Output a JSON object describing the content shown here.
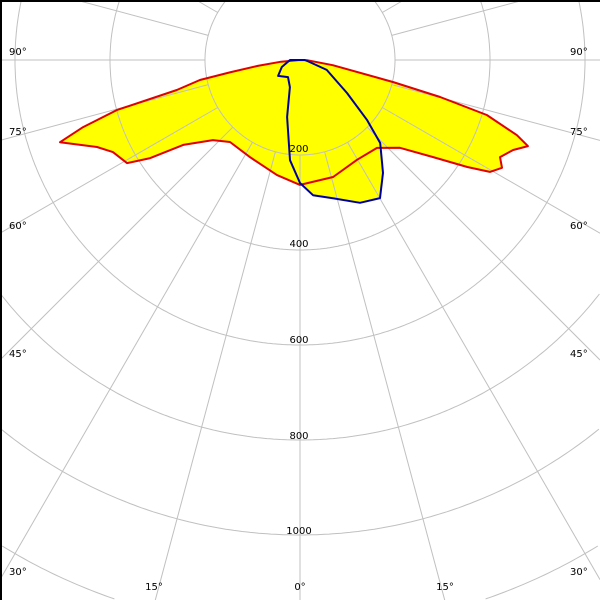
{
  "chart_data": {
    "type": "polar",
    "title": "",
    "radial_ticks": [
      "200",
      "400",
      "600",
      "800",
      "1000"
    ],
    "radial_values": [
      200,
      400,
      600,
      800,
      1000
    ],
    "angle_labels_left": [
      "90°",
      "75°",
      "60°",
      "45°",
      "30°"
    ],
    "angle_labels_right": [
      "90°",
      "75°",
      "60°",
      "45°",
      "30°"
    ],
    "angle_labels_bottom": [
      "15°",
      "0°",
      "15°"
    ],
    "angular_grid_step_deg": 15,
    "grid": true,
    "fill_color": "#ffff00",
    "grid_color": "#c0c0c0",
    "series": [
      {
        "color": "#e00000",
        "points": [
          [
            -90,
            0
          ],
          [
            -85,
            40
          ],
          [
            -82,
            90
          ],
          [
            -80,
            150
          ],
          [
            -78.7,
            215
          ],
          [
            -76.3,
            267
          ],
          [
            -74.7,
            400
          ],
          [
            -72.8,
            478
          ],
          [
            -71.1,
            534
          ],
          [
            -66.8,
            465
          ],
          [
            -63.8,
            439
          ],
          [
            -59.2,
            424
          ],
          [
            -56.8,
            377
          ],
          [
            -54,
            304
          ],
          [
            -47.4,
            249
          ],
          [
            -40.5,
            227
          ],
          [
            -27.3,
            230
          ],
          [
            -11.3,
            247
          ],
          [
            0,
            263
          ],
          [
            15.8,
            256
          ],
          [
            29.7,
            242
          ],
          [
            41.2,
            246
          ],
          [
            48.7,
            280
          ],
          [
            53.9,
            347
          ],
          [
            57.4,
            418
          ],
          [
            59.5,
            464
          ],
          [
            61.9,
            482
          ],
          [
            64.1,
            468
          ],
          [
            67.1,
            487
          ],
          [
            69.3,
            513
          ],
          [
            70.9,
            483
          ],
          [
            73.6,
            410
          ],
          [
            75.2,
            305
          ],
          [
            76.7,
            201
          ],
          [
            81,
            70
          ],
          [
            88,
            15
          ],
          [
            90,
            0
          ]
        ]
      },
      {
        "color": "#0000a0",
        "points": [
          [
            -90,
            21
          ],
          [
            -69,
            41
          ],
          [
            -54,
            57
          ],
          [
            -35,
            44
          ],
          [
            -20.3,
            61
          ],
          [
            -12.8,
            123
          ],
          [
            -5.7,
            212
          ],
          [
            0,
            259
          ],
          [
            5.5,
            286
          ],
          [
            13.4,
            299
          ],
          [
            22.8,
            326
          ],
          [
            30.1,
            336
          ],
          [
            36.3,
            295
          ],
          [
            44,
            243
          ],
          [
            48.2,
            189
          ],
          [
            54.9,
            121
          ],
          [
            69.7,
            60
          ],
          [
            83,
            15
          ],
          [
            90,
            10
          ]
        ]
      }
    ]
  }
}
